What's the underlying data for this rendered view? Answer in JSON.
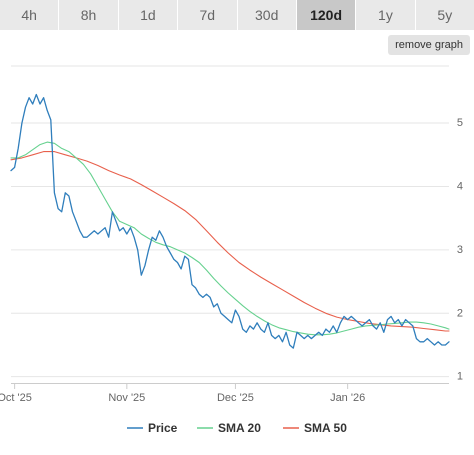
{
  "ranges": {
    "items": [
      {
        "label": "4h"
      },
      {
        "label": "8h"
      },
      {
        "label": "1d"
      },
      {
        "label": "7d"
      },
      {
        "label": "30d"
      },
      {
        "label": "120d"
      },
      {
        "label": "1y"
      },
      {
        "label": "5y"
      }
    ],
    "active_index": 5
  },
  "remove_button": {
    "label": "remove graph"
  },
  "colors": {
    "price": "#2f7ebc",
    "sma20": "#66d18f",
    "sma50": "#e8604c",
    "grid": "#e6e6e6",
    "axis": "#cccccc",
    "tick_text": "#666666"
  },
  "chart_data": {
    "type": "line",
    "title": "",
    "xlabel": "",
    "ylabel": "",
    "x_range": [
      "2025-09-30",
      "2026-01-29"
    ],
    "ylim": [
      0.9,
      5.9
    ],
    "y_ticks": [
      1,
      2,
      3,
      4,
      5
    ],
    "y_axis_side": "right",
    "x_ticks": [
      {
        "date": "2025-10-01",
        "label": "Oct '25"
      },
      {
        "date": "2025-11-01",
        "label": "Nov '25"
      },
      {
        "date": "2025-12-01",
        "label": "Dec '25"
      },
      {
        "date": "2026-01-01",
        "label": "Jan '26"
      }
    ],
    "grid": true,
    "legend_position": "bottom",
    "series": [
      {
        "name": "Price",
        "points": [
          [
            "2025-09-30",
            4.25
          ],
          [
            "2025-10-01",
            4.3
          ],
          [
            "2025-10-02",
            4.6
          ],
          [
            "2025-10-03",
            5.0
          ],
          [
            "2025-10-04",
            5.25
          ],
          [
            "2025-10-05",
            5.4
          ],
          [
            "2025-10-06",
            5.3
          ],
          [
            "2025-10-07",
            5.45
          ],
          [
            "2025-10-08",
            5.3
          ],
          [
            "2025-10-09",
            5.4
          ],
          [
            "2025-10-10",
            5.2
          ],
          [
            "2025-10-11",
            5.05
          ],
          [
            "2025-10-12",
            3.9
          ],
          [
            "2025-10-13",
            3.65
          ],
          [
            "2025-10-14",
            3.6
          ],
          [
            "2025-10-15",
            3.9
          ],
          [
            "2025-10-16",
            3.85
          ],
          [
            "2025-10-17",
            3.6
          ],
          [
            "2025-10-18",
            3.45
          ],
          [
            "2025-10-19",
            3.3
          ],
          [
            "2025-10-20",
            3.2
          ],
          [
            "2025-10-21",
            3.2
          ],
          [
            "2025-10-22",
            3.25
          ],
          [
            "2025-10-23",
            3.3
          ],
          [
            "2025-10-24",
            3.25
          ],
          [
            "2025-10-25",
            3.3
          ],
          [
            "2025-10-26",
            3.35
          ],
          [
            "2025-10-27",
            3.2
          ],
          [
            "2025-10-28",
            3.6
          ],
          [
            "2025-10-29",
            3.45
          ],
          [
            "2025-10-30",
            3.3
          ],
          [
            "2025-10-31",
            3.35
          ],
          [
            "2025-11-01",
            3.25
          ],
          [
            "2025-11-02",
            3.35
          ],
          [
            "2025-11-03",
            3.2
          ],
          [
            "2025-11-04",
            3.0
          ],
          [
            "2025-11-05",
            2.6
          ],
          [
            "2025-11-06",
            2.75
          ],
          [
            "2025-11-07",
            3.0
          ],
          [
            "2025-11-08",
            3.2
          ],
          [
            "2025-11-09",
            3.15
          ],
          [
            "2025-11-10",
            3.3
          ],
          [
            "2025-11-11",
            3.2
          ],
          [
            "2025-11-12",
            3.05
          ],
          [
            "2025-11-13",
            2.95
          ],
          [
            "2025-11-14",
            2.85
          ],
          [
            "2025-11-15",
            2.8
          ],
          [
            "2025-11-16",
            2.7
          ],
          [
            "2025-11-17",
            2.9
          ],
          [
            "2025-11-18",
            2.85
          ],
          [
            "2025-11-19",
            2.45
          ],
          [
            "2025-11-20",
            2.4
          ],
          [
            "2025-11-21",
            2.3
          ],
          [
            "2025-11-22",
            2.25
          ],
          [
            "2025-11-23",
            2.3
          ],
          [
            "2025-11-24",
            2.25
          ],
          [
            "2025-11-25",
            2.1
          ],
          [
            "2025-11-26",
            2.15
          ],
          [
            "2025-11-27",
            2.0
          ],
          [
            "2025-11-28",
            1.95
          ],
          [
            "2025-11-29",
            1.9
          ],
          [
            "2025-11-30",
            1.85
          ],
          [
            "2025-12-01",
            2.05
          ],
          [
            "2025-12-02",
            1.95
          ],
          [
            "2025-12-03",
            1.75
          ],
          [
            "2025-12-04",
            1.7
          ],
          [
            "2025-12-05",
            1.8
          ],
          [
            "2025-12-06",
            1.75
          ],
          [
            "2025-12-07",
            1.85
          ],
          [
            "2025-12-08",
            1.75
          ],
          [
            "2025-12-09",
            1.7
          ],
          [
            "2025-12-10",
            1.85
          ],
          [
            "2025-12-11",
            1.65
          ],
          [
            "2025-12-12",
            1.6
          ],
          [
            "2025-12-13",
            1.65
          ],
          [
            "2025-12-14",
            1.55
          ],
          [
            "2025-12-15",
            1.7
          ],
          [
            "2025-12-16",
            1.5
          ],
          [
            "2025-12-17",
            1.45
          ],
          [
            "2025-12-18",
            1.7
          ],
          [
            "2025-12-19",
            1.65
          ],
          [
            "2025-12-20",
            1.6
          ],
          [
            "2025-12-21",
            1.65
          ],
          [
            "2025-12-22",
            1.6
          ],
          [
            "2025-12-23",
            1.65
          ],
          [
            "2025-12-24",
            1.7
          ],
          [
            "2025-12-25",
            1.65
          ],
          [
            "2025-12-26",
            1.75
          ],
          [
            "2025-12-27",
            1.7
          ],
          [
            "2025-12-28",
            1.8
          ],
          [
            "2025-12-29",
            1.7
          ],
          [
            "2025-12-30",
            1.85
          ],
          [
            "2025-12-31",
            1.95
          ],
          [
            "2026-01-01",
            1.9
          ],
          [
            "2026-01-02",
            1.95
          ],
          [
            "2026-01-03",
            1.9
          ],
          [
            "2026-01-04",
            1.85
          ],
          [
            "2026-01-05",
            1.8
          ],
          [
            "2026-01-06",
            1.85
          ],
          [
            "2026-01-07",
            1.9
          ],
          [
            "2026-01-08",
            1.8
          ],
          [
            "2026-01-09",
            1.75
          ],
          [
            "2026-01-10",
            1.85
          ],
          [
            "2026-01-11",
            1.7
          ],
          [
            "2026-01-12",
            1.9
          ],
          [
            "2026-01-13",
            1.95
          ],
          [
            "2026-01-14",
            1.85
          ],
          [
            "2026-01-15",
            1.9
          ],
          [
            "2026-01-16",
            1.8
          ],
          [
            "2026-01-17",
            1.9
          ],
          [
            "2026-01-18",
            1.85
          ],
          [
            "2026-01-19",
            1.8
          ],
          [
            "2026-01-20",
            1.6
          ],
          [
            "2026-01-21",
            1.55
          ],
          [
            "2026-01-22",
            1.55
          ],
          [
            "2026-01-23",
            1.6
          ],
          [
            "2026-01-24",
            1.55
          ],
          [
            "2026-01-25",
            1.5
          ],
          [
            "2026-01-26",
            1.55
          ],
          [
            "2026-01-27",
            1.5
          ],
          [
            "2026-01-28",
            1.5
          ],
          [
            "2026-01-29",
            1.55
          ]
        ]
      },
      {
        "name": "SMA 20",
        "points": [
          [
            "2025-09-30",
            4.45
          ],
          [
            "2025-10-02",
            4.45
          ],
          [
            "2025-10-04",
            4.5
          ],
          [
            "2025-10-06",
            4.58
          ],
          [
            "2025-10-08",
            4.66
          ],
          [
            "2025-10-10",
            4.7
          ],
          [
            "2025-10-12",
            4.68
          ],
          [
            "2025-10-14",
            4.6
          ],
          [
            "2025-10-16",
            4.55
          ],
          [
            "2025-10-18",
            4.45
          ],
          [
            "2025-10-20",
            4.35
          ],
          [
            "2025-10-22",
            4.2
          ],
          [
            "2025-10-24",
            4.0
          ],
          [
            "2025-10-26",
            3.8
          ],
          [
            "2025-10-28",
            3.6
          ],
          [
            "2025-10-30",
            3.45
          ],
          [
            "2025-11-01",
            3.4
          ],
          [
            "2025-11-03",
            3.35
          ],
          [
            "2025-11-05",
            3.25
          ],
          [
            "2025-11-07",
            3.18
          ],
          [
            "2025-11-09",
            3.12
          ],
          [
            "2025-11-11",
            3.08
          ],
          [
            "2025-11-13",
            3.05
          ],
          [
            "2025-11-15",
            3.0
          ],
          [
            "2025-11-17",
            2.95
          ],
          [
            "2025-11-19",
            2.88
          ],
          [
            "2025-11-21",
            2.8
          ],
          [
            "2025-11-23",
            2.68
          ],
          [
            "2025-11-25",
            2.55
          ],
          [
            "2025-11-27",
            2.43
          ],
          [
            "2025-11-29",
            2.32
          ],
          [
            "2025-12-01",
            2.22
          ],
          [
            "2025-12-03",
            2.12
          ],
          [
            "2025-12-05",
            2.03
          ],
          [
            "2025-12-07",
            1.95
          ],
          [
            "2025-12-09",
            1.88
          ],
          [
            "2025-12-11",
            1.82
          ],
          [
            "2025-12-13",
            1.77
          ],
          [
            "2025-12-15",
            1.74
          ],
          [
            "2025-12-17",
            1.71
          ],
          [
            "2025-12-19",
            1.69
          ],
          [
            "2025-12-21",
            1.67
          ],
          [
            "2025-12-23",
            1.66
          ],
          [
            "2025-12-25",
            1.66
          ],
          [
            "2025-12-27",
            1.67
          ],
          [
            "2025-12-29",
            1.69
          ],
          [
            "2025-12-31",
            1.72
          ],
          [
            "2026-01-02",
            1.75
          ],
          [
            "2026-01-04",
            1.78
          ],
          [
            "2026-01-06",
            1.8
          ],
          [
            "2026-01-08",
            1.81
          ],
          [
            "2026-01-10",
            1.82
          ],
          [
            "2026-01-12",
            1.83
          ],
          [
            "2026-01-14",
            1.84
          ],
          [
            "2026-01-16",
            1.85
          ],
          [
            "2026-01-18",
            1.86
          ],
          [
            "2026-01-20",
            1.86
          ],
          [
            "2026-01-22",
            1.85
          ],
          [
            "2026-01-24",
            1.83
          ],
          [
            "2026-01-26",
            1.8
          ],
          [
            "2026-01-28",
            1.77
          ],
          [
            "2026-01-29",
            1.75
          ]
        ]
      },
      {
        "name": "SMA 50",
        "points": [
          [
            "2025-09-30",
            4.42
          ],
          [
            "2025-10-03",
            4.45
          ],
          [
            "2025-10-06",
            4.5
          ],
          [
            "2025-10-09",
            4.55
          ],
          [
            "2025-10-12",
            4.55
          ],
          [
            "2025-10-15",
            4.5
          ],
          [
            "2025-10-18",
            4.45
          ],
          [
            "2025-10-21",
            4.4
          ],
          [
            "2025-10-24",
            4.33
          ],
          [
            "2025-10-27",
            4.25
          ],
          [
            "2025-10-30",
            4.18
          ],
          [
            "2025-11-02",
            4.12
          ],
          [
            "2025-11-05",
            4.03
          ],
          [
            "2025-11-08",
            3.93
          ],
          [
            "2025-11-11",
            3.83
          ],
          [
            "2025-11-14",
            3.73
          ],
          [
            "2025-11-17",
            3.62
          ],
          [
            "2025-11-20",
            3.48
          ],
          [
            "2025-11-23",
            3.3
          ],
          [
            "2025-11-26",
            3.12
          ],
          [
            "2025-11-29",
            2.95
          ],
          [
            "2025-12-02",
            2.8
          ],
          [
            "2025-12-05",
            2.68
          ],
          [
            "2025-12-08",
            2.57
          ],
          [
            "2025-12-11",
            2.47
          ],
          [
            "2025-12-14",
            2.37
          ],
          [
            "2025-12-17",
            2.27
          ],
          [
            "2025-12-20",
            2.17
          ],
          [
            "2025-12-23",
            2.08
          ],
          [
            "2025-12-26",
            2.0
          ],
          [
            "2025-12-29",
            1.94
          ],
          [
            "2026-01-01",
            1.9
          ],
          [
            "2026-01-04",
            1.87
          ],
          [
            "2026-01-07",
            1.84
          ],
          [
            "2026-01-10",
            1.82
          ],
          [
            "2026-01-13",
            1.8
          ],
          [
            "2026-01-16",
            1.79
          ],
          [
            "2026-01-19",
            1.78
          ],
          [
            "2026-01-22",
            1.76
          ],
          [
            "2026-01-25",
            1.74
          ],
          [
            "2026-01-28",
            1.72
          ],
          [
            "2026-01-29",
            1.72
          ]
        ]
      }
    ]
  }
}
